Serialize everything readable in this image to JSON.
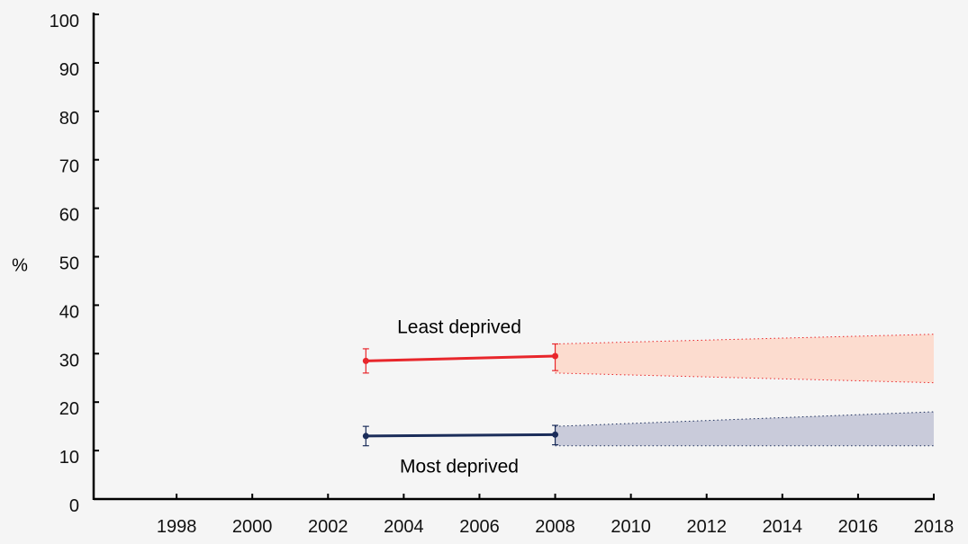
{
  "chart_data": {
    "type": "line",
    "title": "",
    "xlabel": "",
    "ylabel": "%",
    "xlim": [
      1996,
      2018
    ],
    "ylim": [
      0,
      100
    ],
    "x_ticks": [
      1998,
      2000,
      2002,
      2004,
      2006,
      2008,
      2010,
      2012,
      2014,
      2016,
      2018
    ],
    "y_ticks": [
      0,
      10,
      20,
      30,
      40,
      50,
      60,
      70,
      80,
      90,
      100
    ],
    "grid": false,
    "legend": "none",
    "series": [
      {
        "name": "Least deprived",
        "color": "#e8262b",
        "points": [
          {
            "x": 2003,
            "y": 28.5,
            "low": 26,
            "high": 31
          },
          {
            "x": 2008,
            "y": 29.5,
            "low": 26.5,
            "high": 32
          }
        ],
        "projection": {
          "color": "#fcdccf",
          "upper": [
            {
              "x": 2008,
              "y": 32
            },
            {
              "x": 2018,
              "y": 34
            }
          ],
          "lower": [
            {
              "x": 2008,
              "y": 26
            },
            {
              "x": 2018,
              "y": 24
            }
          ]
        }
      },
      {
        "name": "Most deprived",
        "color": "#1b2d5a",
        "points": [
          {
            "x": 2003,
            "y": 13,
            "low": 11,
            "high": 15
          },
          {
            "x": 2008,
            "y": 13.3,
            "low": 11.2,
            "high": 15.2
          }
        ],
        "projection": {
          "color": "#c9cbda",
          "upper": [
            {
              "x": 2008,
              "y": 15
            },
            {
              "x": 2018,
              "y": 18
            }
          ],
          "lower": [
            {
              "x": 2008,
              "y": 11
            },
            {
              "x": 2018,
              "y": 11
            }
          ]
        }
      }
    ],
    "annotations": [
      {
        "text": "Least deprived",
        "series": 0
      },
      {
        "text": "Most deprived",
        "series": 1
      }
    ]
  }
}
